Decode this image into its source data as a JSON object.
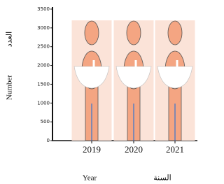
{
  "chart_data": {
    "type": "bar",
    "categories": [
      "2019",
      "2020",
      "2021"
    ],
    "values": [
      3200,
      3200,
      3200
    ],
    "color": "#fbe3d8",
    "ylim": [
      0,
      3500
    ],
    "yticks": [
      0,
      500,
      1000,
      1500,
      2000,
      2500,
      3000,
      3500
    ],
    "x_label": "Year",
    "x_label_ar": "السنة",
    "y_label": "Number",
    "y_label_ar": "العدد"
  }
}
